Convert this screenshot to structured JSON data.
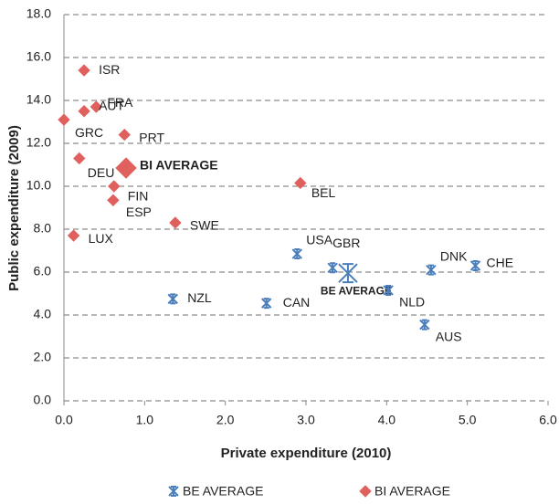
{
  "chart_data": {
    "type": "scatter",
    "xlabel": "Private expenditure (2010)",
    "ylabel": "Public expenditure (2009)",
    "xlim": [
      0,
      6
    ],
    "xticks": [
      {
        "value": 0,
        "label": "0.0"
      },
      {
        "value": 1,
        "label": "1.0"
      },
      {
        "value": 2,
        "label": "2.0"
      },
      {
        "value": 3,
        "label": "3.0"
      },
      {
        "value": 4,
        "label": "4.0"
      },
      {
        "value": 5,
        "label": "5.0"
      },
      {
        "value": 6,
        "label": "6.0"
      }
    ],
    "ylim": [
      0,
      18
    ],
    "yticks": [
      {
        "value": 0,
        "label": "0.0"
      },
      {
        "value": 2,
        "label": "2.0"
      },
      {
        "value": 4,
        "label": "4.0"
      },
      {
        "value": 6,
        "label": "6.0"
      },
      {
        "value": 8,
        "label": "8.0"
      },
      {
        "value": 10,
        "label": "10.0"
      },
      {
        "value": 12,
        "label": "12.0"
      },
      {
        "value": 14,
        "label": "14.0"
      },
      {
        "value": 16,
        "label": "16.0"
      },
      {
        "value": 18,
        "label": "18.0"
      }
    ],
    "grid": true,
    "legend": "bottom",
    "series": [
      {
        "name": "BE AVERAGE",
        "color": "#4a7ebb",
        "marker": "star",
        "labels": [
          "USA",
          "GBR",
          "BE AVERAGE",
          "DNK",
          "CHE",
          "NLD",
          "AUS",
          "NZL",
          "CAN"
        ],
        "x": [
          2.89,
          3.33,
          3.52,
          4.55,
          5.1,
          4.02,
          4.47,
          1.35,
          2.51
        ],
        "values": [
          6.85,
          6.2,
          5.95,
          6.1,
          6.3,
          5.15,
          3.55,
          4.75,
          4.55
        ]
      },
      {
        "name": "BI AVERAGE",
        "color": "#e0605e",
        "marker": "diamond",
        "labels": [
          "ISR",
          "FRA",
          "AUT",
          "GRC",
          "PRT",
          "DEU",
          "BI AVERAGE",
          "FIN",
          "ESP",
          "BEL",
          "SWE",
          "LUX"
        ],
        "x": [
          0.25,
          0.4,
          0.25,
          0.0,
          0.75,
          0.19,
          0.77,
          0.62,
          0.61,
          2.93,
          1.38,
          0.12
        ],
        "values": [
          15.4,
          13.7,
          13.5,
          13.1,
          12.4,
          11.3,
          10.85,
          10.0,
          9.35,
          10.15,
          8.3,
          7.7
        ]
      }
    ]
  }
}
